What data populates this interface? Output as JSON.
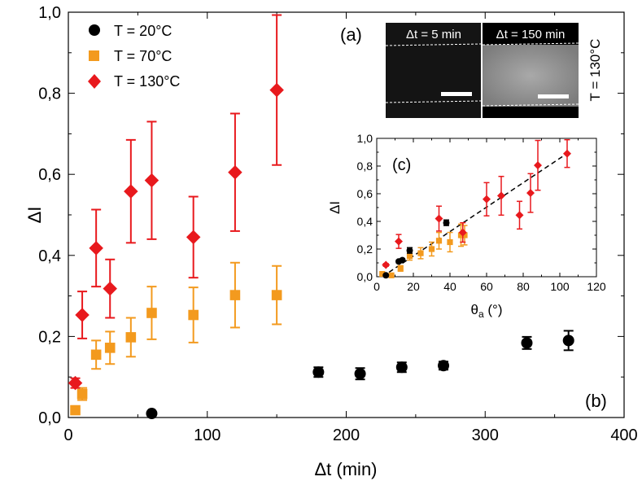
{
  "colors": {
    "t20": "#000000",
    "t70": "#f39a1e",
    "t130": "#e8191d",
    "fit": "#000000"
  },
  "panel_labels": {
    "a": "(a)",
    "b": "(b)",
    "c": "(c)"
  },
  "legend": [
    {
      "label": "T = 20°C",
      "marker": "circle",
      "color": "#000000"
    },
    {
      "label": "T = 70°C",
      "marker": "square",
      "color": "#f39a1e"
    },
    {
      "label": "T = 130°C",
      "marker": "diamond",
      "color": "#e8191d"
    }
  ],
  "photos": {
    "left_label": "Δt = 5 min",
    "right_label": "Δt = 150 min",
    "side_label": "T = 130°C"
  },
  "chart_data": [
    {
      "type": "scatter",
      "xlabel": "Δt (min)",
      "ylabel": "ΔI",
      "xlim": [
        0,
        400
      ],
      "ylim": [
        0,
        1.0
      ],
      "xticks": [
        0,
        100,
        200,
        300,
        400
      ],
      "yticks": [
        0.0,
        0.2,
        0.4,
        0.6,
        0.8,
        1.0
      ],
      "xtick_labels": [
        "0",
        "100",
        "200",
        "300",
        "400"
      ],
      "ytick_labels": [
        "0,0",
        "0,2",
        "0,4",
        "0,6",
        "0,8",
        "1,0"
      ],
      "series": [
        {
          "name": "T = 20°C",
          "marker": "circle",
          "color": "#000000",
          "x": [
            60,
            180,
            210,
            240,
            270,
            330,
            360
          ],
          "y": [
            0.01,
            0.112,
            0.108,
            0.124,
            0.128,
            0.184,
            0.19
          ],
          "err": [
            0.0,
            0.012,
            0.014,
            0.012,
            0.01,
            0.015,
            0.024
          ]
        },
        {
          "name": "T = 70°C",
          "marker": "square",
          "color": "#f39a1e",
          "x": [
            5,
            10,
            20,
            30,
            45,
            60,
            90,
            120,
            150
          ],
          "y": [
            0.018,
            0.058,
            0.155,
            0.172,
            0.198,
            0.258,
            0.253,
            0.302,
            0.302
          ],
          "err": [
            0.005,
            0.015,
            0.035,
            0.04,
            0.048,
            0.065,
            0.068,
            0.08,
            0.072
          ]
        },
        {
          "name": "T = 130°C",
          "marker": "diamond",
          "color": "#e8191d",
          "x": [
            5,
            10,
            20,
            30,
            45,
            60,
            90,
            120,
            150
          ],
          "y": [
            0.085,
            0.253,
            0.418,
            0.318,
            0.558,
            0.585,
            0.445,
            0.605,
            0.808
          ],
          "err": [
            0.012,
            0.058,
            0.095,
            0.072,
            0.127,
            0.145,
            0.1,
            0.145,
            0.185
          ]
        }
      ]
    },
    {
      "type": "scatter",
      "panel": "(c)",
      "xlabel_main": "θ",
      "xlabel_sub": "a",
      "xlabel_unit": " (°)",
      "ylabel": "ΔI",
      "xlim": [
        0,
        120
      ],
      "ylim": [
        0,
        1.0
      ],
      "xticks": [
        0,
        20,
        40,
        60,
        80,
        100,
        120
      ],
      "yticks": [
        0.0,
        0.2,
        0.4,
        0.6,
        0.8,
        1.0
      ],
      "xtick_labels": [
        "0",
        "20",
        "40",
        "60",
        "80",
        "100",
        "120"
      ],
      "ytick_labels": [
        "0,0",
        "0,2",
        "0,4",
        "0,6",
        "0,8",
        "1,0"
      ],
      "fit_line": {
        "x": [
          3,
          105
        ],
        "y": [
          0.0,
          0.9
        ]
      },
      "series": [
        {
          "name": "T = 20°C",
          "marker": "circle",
          "color": "#000000",
          "x": [
            5,
            12,
            14,
            18,
            38
          ],
          "y": [
            0.01,
            0.11,
            0.12,
            0.19,
            0.39
          ],
          "err": [
            0.0,
            0.01,
            0.01,
            0.02,
            0.02
          ]
        },
        {
          "name": "T = 70°C",
          "marker": "square",
          "color": "#f39a1e",
          "x": [
            3,
            8,
            13,
            18,
            24,
            30,
            34,
            40,
            46,
            48
          ],
          "y": [
            0.02,
            0.01,
            0.06,
            0.15,
            0.17,
            0.2,
            0.26,
            0.25,
            0.3,
            0.3
          ],
          "err": [
            0.0,
            0.01,
            0.02,
            0.03,
            0.04,
            0.05,
            0.06,
            0.07,
            0.08,
            0.07
          ]
        },
        {
          "name": "T = 130°C",
          "marker": "diamond",
          "color": "#e8191d",
          "x": [
            5,
            12,
            34,
            47,
            60,
            68,
            78,
            84,
            88,
            104
          ],
          "y": [
            0.085,
            0.255,
            0.42,
            0.32,
            0.56,
            0.585,
            0.445,
            0.605,
            0.805,
            0.89
          ],
          "err": [
            0.01,
            0.05,
            0.09,
            0.07,
            0.12,
            0.14,
            0.1,
            0.14,
            0.18,
            0.1
          ]
        }
      ]
    }
  ]
}
